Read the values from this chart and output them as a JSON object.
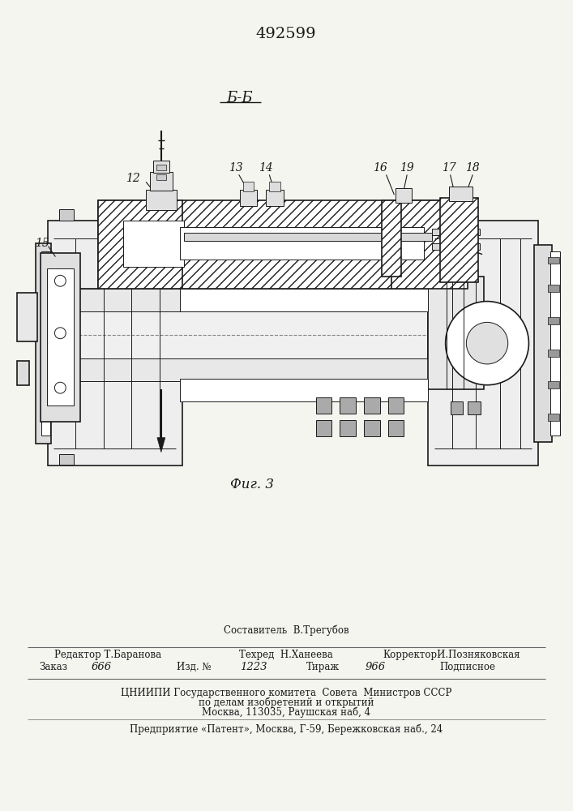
{
  "patent_number": "492599",
  "section_label": "Б-Б",
  "fig_label": "Фиг. 3",
  "bg_color": "#f5f5f0",
  "drawing_color": "#1a1a1a",
  "footer": {
    "sostavitel": "Составитель  В.Трегубов",
    "redaktor_label": "Редактор",
    "redaktor_val": "Т.Баранова",
    "tehred_label": "Техред",
    "tehred_val": "Н.Ханеева",
    "korrektor_label": "Корректор",
    "korrektor_val": "И.Позняковская",
    "zakaz_label": "Заказ",
    "zakaz_val": "666",
    "izd_label": "Изд. №",
    "izd_val": "1223",
    "tirazh_label": "Тираж",
    "tirazh_val": "966",
    "podpisnoe": "Подписное",
    "org1": "ЦНИИПИ Государственного комитета  Совета  Министров СССР",
    "org2": "по делам изобретений и открытий",
    "org3": "Москва, 113035, Раушская наб, 4",
    "predp": "Предприятие «Патент», Москва, Г-59, Бережковская наб., 24"
  }
}
